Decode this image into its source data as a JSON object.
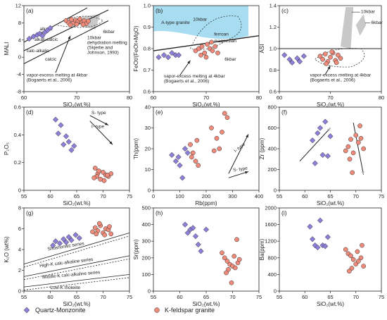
{
  "chart_data": [
    {
      "type": "scatter",
      "panel": "(a)",
      "xlabel": "SiO₂(wt.%)",
      "ylabel": "MALI",
      "xlim": [
        60,
        80
      ],
      "ylim": [
        -8,
        12
      ],
      "xticks": [
        "60",
        "70",
        "80"
      ],
      "yticks": [
        "-8",
        "-4",
        "0",
        "4",
        "8",
        "12"
      ],
      "annotations": [
        "alkalic",
        "alkali-calcic",
        "calc-alkalic",
        "calcic",
        "6kbar",
        "10kbar dehydration melting (Skjerlie and Johnson, 1993)",
        "vapor-excess melting at 4kbar (Bogaerts et al., 2006)"
      ],
      "series": [
        {
          "name": "Quartz-Monzonite",
          "x": [
            61.0,
            61.8,
            62.5,
            63.0,
            63.5,
            64.0,
            64.5,
            65.0
          ],
          "y": [
            4.3,
            4.8,
            5.2,
            5.5,
            5.0,
            5.8,
            6.3,
            6.8
          ]
        },
        {
          "name": "K-feldspar granite",
          "x": [
            68.0,
            68.5,
            69.0,
            69.4,
            69.8,
            70.2,
            70.6,
            71.0,
            71.4,
            71.8,
            72.2,
            68.8,
            70.0,
            71.2
          ],
          "y": [
            8.5,
            8.0,
            8.8,
            7.9,
            8.6,
            8.3,
            8.9,
            8.1,
            8.5,
            7.8,
            8.4,
            7.5,
            7.7,
            7.6
          ]
        }
      ]
    },
    {
      "type": "scatter",
      "panel": "(b)",
      "xlabel": "SiO₂(wt.%)",
      "ylabel": "FeOt/(FeOt+MgO)",
      "xlim": [
        60,
        80
      ],
      "ylim": [
        0.6,
        1.0
      ],
      "xticks": [
        "60",
        "70",
        "80"
      ],
      "yticks": [
        "0.6",
        "0.7",
        "0.8",
        "0.9",
        "1.0"
      ],
      "annotations": [
        "A-type granite",
        "10kbar",
        "ferroan",
        "magnesian",
        "6kbar",
        "vapor-excess melting at 4kbar (Bogaerts et al., 2006)"
      ],
      "series": [
        {
          "name": "Quartz-Monzonite",
          "x": [
            61.0,
            62.0,
            62.8,
            63.5,
            64.2,
            64.8
          ],
          "y": [
            0.76,
            0.77,
            0.76,
            0.78,
            0.77,
            0.77
          ]
        },
        {
          "name": "K-feldspar granite",
          "x": [
            68.0,
            68.6,
            69.2,
            69.7,
            70.2,
            70.7,
            71.2,
            71.7,
            72.2,
            69.0,
            70.0,
            71.0
          ],
          "y": [
            0.79,
            0.8,
            0.81,
            0.78,
            0.82,
            0.8,
            0.79,
            0.81,
            0.78,
            0.77,
            0.76,
            0.83
          ]
        }
      ]
    },
    {
      "type": "scatter",
      "panel": "(c)",
      "xlabel": "SiO₂(wt.%)",
      "ylabel": "ASI",
      "xlim": [
        60,
        80
      ],
      "ylim": [
        0.6,
        1.4
      ],
      "xticks": [
        "60",
        "70",
        "80"
      ],
      "yticks": [
        "0.6",
        "0.8",
        "1.0",
        "1.2",
        "1.4"
      ],
      "annotations": [
        "10kbar",
        "6kbar",
        "vapor-excess melting at 4kbar (Bogaerts et al., 2006)"
      ],
      "series": [
        {
          "name": "Quartz-Monzonite",
          "x": [
            61.0,
            62.0,
            62.5,
            63.5,
            64.0,
            64.8
          ],
          "y": [
            0.94,
            0.9,
            0.87,
            0.91,
            0.88,
            0.93
          ]
        },
        {
          "name": "K-feldspar granite",
          "x": [
            68.0,
            68.5,
            69.0,
            69.5,
            70.0,
            70.5,
            71.0,
            71.5,
            72.0,
            69.2,
            70.3,
            71.2
          ],
          "y": [
            0.93,
            0.9,
            0.95,
            0.88,
            0.92,
            0.96,
            0.89,
            0.94,
            0.91,
            0.86,
            0.97,
            0.87
          ]
        }
      ]
    },
    {
      "type": "scatter",
      "panel": "(d)",
      "xlabel": "SiO₂(wt.%)",
      "ylabel": "P₂O₅",
      "xlim": [
        55,
        75
      ],
      "ylim": [
        0,
        0.6
      ],
      "xticks": [
        "55",
        "60",
        "65",
        "70",
        "75"
      ],
      "yticks": [
        "0",
        "0.2",
        "0.4",
        "0.6"
      ],
      "annotations": [
        "S- type",
        "I- type"
      ],
      "series": [
        {
          "name": "Quartz-Monzonite",
          "x": [
            61.0,
            62.0,
            61.5,
            63.0,
            63.5,
            62.5,
            64.5,
            64.0
          ],
          "y": [
            0.51,
            0.47,
            0.41,
            0.39,
            0.35,
            0.33,
            0.32,
            0.29
          ]
        },
        {
          "name": "K-feldspar granite",
          "x": [
            68.5,
            69.0,
            68.8,
            69.5,
            70.0,
            70.5,
            71.0,
            69.2,
            70.2,
            71.5,
            68.3,
            70.8
          ],
          "y": [
            0.16,
            0.12,
            0.1,
            0.08,
            0.13,
            0.11,
            0.1,
            0.14,
            0.07,
            0.12,
            0.09,
            0.11
          ]
        }
      ]
    },
    {
      "type": "scatter",
      "panel": "(e)",
      "xlabel": "Rb(ppm)",
      "ylabel": "Th(ppm)",
      "xlim": [
        0,
        400
      ],
      "ylim": [
        0,
        40
      ],
      "xticks": [
        "0",
        "100",
        "200",
        "300",
        "400"
      ],
      "yticks": [
        "0",
        "10",
        "20",
        "30",
        "40"
      ],
      "annotations": [
        "I- type",
        "S- type"
      ],
      "series": [
        {
          "name": "Quartz-Monzonite",
          "x": [
            70,
            95,
            100,
            110,
            120,
            85,
            130
          ],
          "y": [
            17,
            16,
            12,
            6,
            20,
            14,
            18
          ]
        },
        {
          "name": "K-feldspar granite",
          "x": [
            140,
            150,
            160,
            170,
            220,
            240,
            250,
            270,
            280,
            260,
            230,
            145,
            165
          ],
          "y": [
            22,
            18,
            14,
            12,
            30,
            25,
            20,
            37,
            35,
            28,
            19,
            16,
            24
          ]
        }
      ]
    },
    {
      "type": "scatter",
      "panel": "(f)",
      "xlabel": "SiO₂(wt.%)",
      "ylabel": "Zr (ppm)",
      "xlim": [
        55,
        75
      ],
      "ylim": [
        0,
        800
      ],
      "xticks": [
        "55",
        "60",
        "65",
        "70",
        "75"
      ],
      "yticks": [
        "0",
        "200",
        "400",
        "600",
        "800"
      ],
      "series": [
        {
          "name": "Quartz-Monzonite",
          "x": [
            61.5,
            62.0,
            63.0,
            64.0,
            65.0,
            63.5,
            62.5,
            64.5
          ],
          "y": [
            480,
            260,
            600,
            660,
            520,
            340,
            550,
            330
          ]
        },
        {
          "name": "K-feldspar granite",
          "x": [
            68.0,
            68.5,
            69.0,
            69.5,
            70.0,
            70.5,
            71.0,
            71.5,
            69.3,
            70.8,
            68.8
          ],
          "y": [
            380,
            420,
            490,
            360,
            530,
            460,
            500,
            400,
            170,
            620,
            300
          ]
        }
      ]
    },
    {
      "type": "scatter",
      "panel": "(g)",
      "xlabel": "SiO₂(wt.%)",
      "ylabel": "K₂O (wt%)",
      "xlim": [
        55,
        75
      ],
      "ylim": [
        0,
        8
      ],
      "xticks": [
        "55",
        "60",
        "65",
        "70",
        "75"
      ],
      "yticks": [
        "0",
        "2",
        "4",
        "6",
        "8"
      ],
      "annotations": [
        "Shoshonitic series",
        "High-K calc-alkaline series",
        "Middle-K calc-alkaline series",
        "Low-K tholeiite"
      ],
      "series": [
        {
          "name": "Quartz-Monzonite",
          "x": [
            60.5,
            61.0,
            61.8,
            62.5,
            63.0,
            63.5,
            64.0,
            64.8,
            65.5
          ],
          "y": [
            4.4,
            4.8,
            4.6,
            5.0,
            4.7,
            5.2,
            4.9,
            5.4,
            5.1
          ]
        },
        {
          "name": "K-feldspar granite",
          "x": [
            68.0,
            68.5,
            69.0,
            69.5,
            70.0,
            70.5,
            71.0,
            71.5,
            69.3,
            70.3,
            71.2,
            68.7
          ],
          "y": [
            5.7,
            6.1,
            5.8,
            6.3,
            5.6,
            6.0,
            5.9,
            5.5,
            6.5,
            5.4,
            6.2,
            5.5
          ]
        }
      ]
    },
    {
      "type": "scatter",
      "panel": "(h)",
      "xlabel": "SiO₂(wt.%)",
      "ylabel": "Sr(ppm)",
      "xlim": [
        55,
        75
      ],
      "ylim": [
        0,
        500
      ],
      "xticks": [
        "55",
        "60",
        "65",
        "70",
        "75"
      ],
      "yticks": [
        "0",
        "100",
        "200",
        "300",
        "400",
        "500"
      ],
      "series": [
        {
          "name": "Quartz-Monzonite",
          "x": [
            61.0,
            61.5,
            62.0,
            62.5,
            63.0,
            63.5,
            64.0,
            65.0
          ],
          "y": [
            400,
            350,
            370,
            380,
            330,
            280,
            240,
            370
          ]
        },
        {
          "name": "K-feldspar granite",
          "x": [
            68.0,
            68.5,
            69.0,
            69.5,
            70.0,
            70.5,
            71.0,
            69.2,
            70.3,
            71.3,
            68.8,
            69.8,
            70.8
          ],
          "y": [
            230,
            200,
            180,
            160,
            150,
            140,
            170,
            130,
            210,
            190,
            110,
            50,
            310
          ]
        }
      ]
    },
    {
      "type": "scatter",
      "panel": "(i)",
      "xlabel": "SiO₂(wt.%)",
      "ylabel": "Ba(ppm)",
      "xlim": [
        55,
        75
      ],
      "ylim": [
        0,
        2000
      ],
      "xticks": [
        "55",
        "60",
        "65",
        "70",
        "75"
      ],
      "yticks": [
        "0",
        "400",
        "800",
        "1200",
        "1600",
        "2000"
      ],
      "series": [
        {
          "name": "Quartz-Monzonite",
          "x": [
            61.0,
            61.5,
            62.0,
            62.5,
            63.0,
            63.5,
            64.0,
            64.5
          ],
          "y": [
            1550,
            1250,
            1100,
            1050,
            1700,
            1100,
            1080,
            1300
          ]
        },
        {
          "name": "K-feldspar granite",
          "x": [
            68.0,
            68.5,
            69.0,
            69.5,
            70.0,
            70.5,
            71.0,
            71.5,
            69.2,
            70.3,
            71.2,
            68.7
          ],
          "y": [
            1000,
            900,
            850,
            760,
            650,
            720,
            800,
            600,
            550,
            950,
            1100,
            480
          ]
        }
      ]
    }
  ],
  "legend": {
    "items": [
      {
        "label": "Quartz-Monzonite",
        "color": "#8b7fd8",
        "marker": "diamond"
      },
      {
        "label": "K-feldspar granite",
        "color": "#f08a7a",
        "marker": "circle"
      }
    ]
  }
}
